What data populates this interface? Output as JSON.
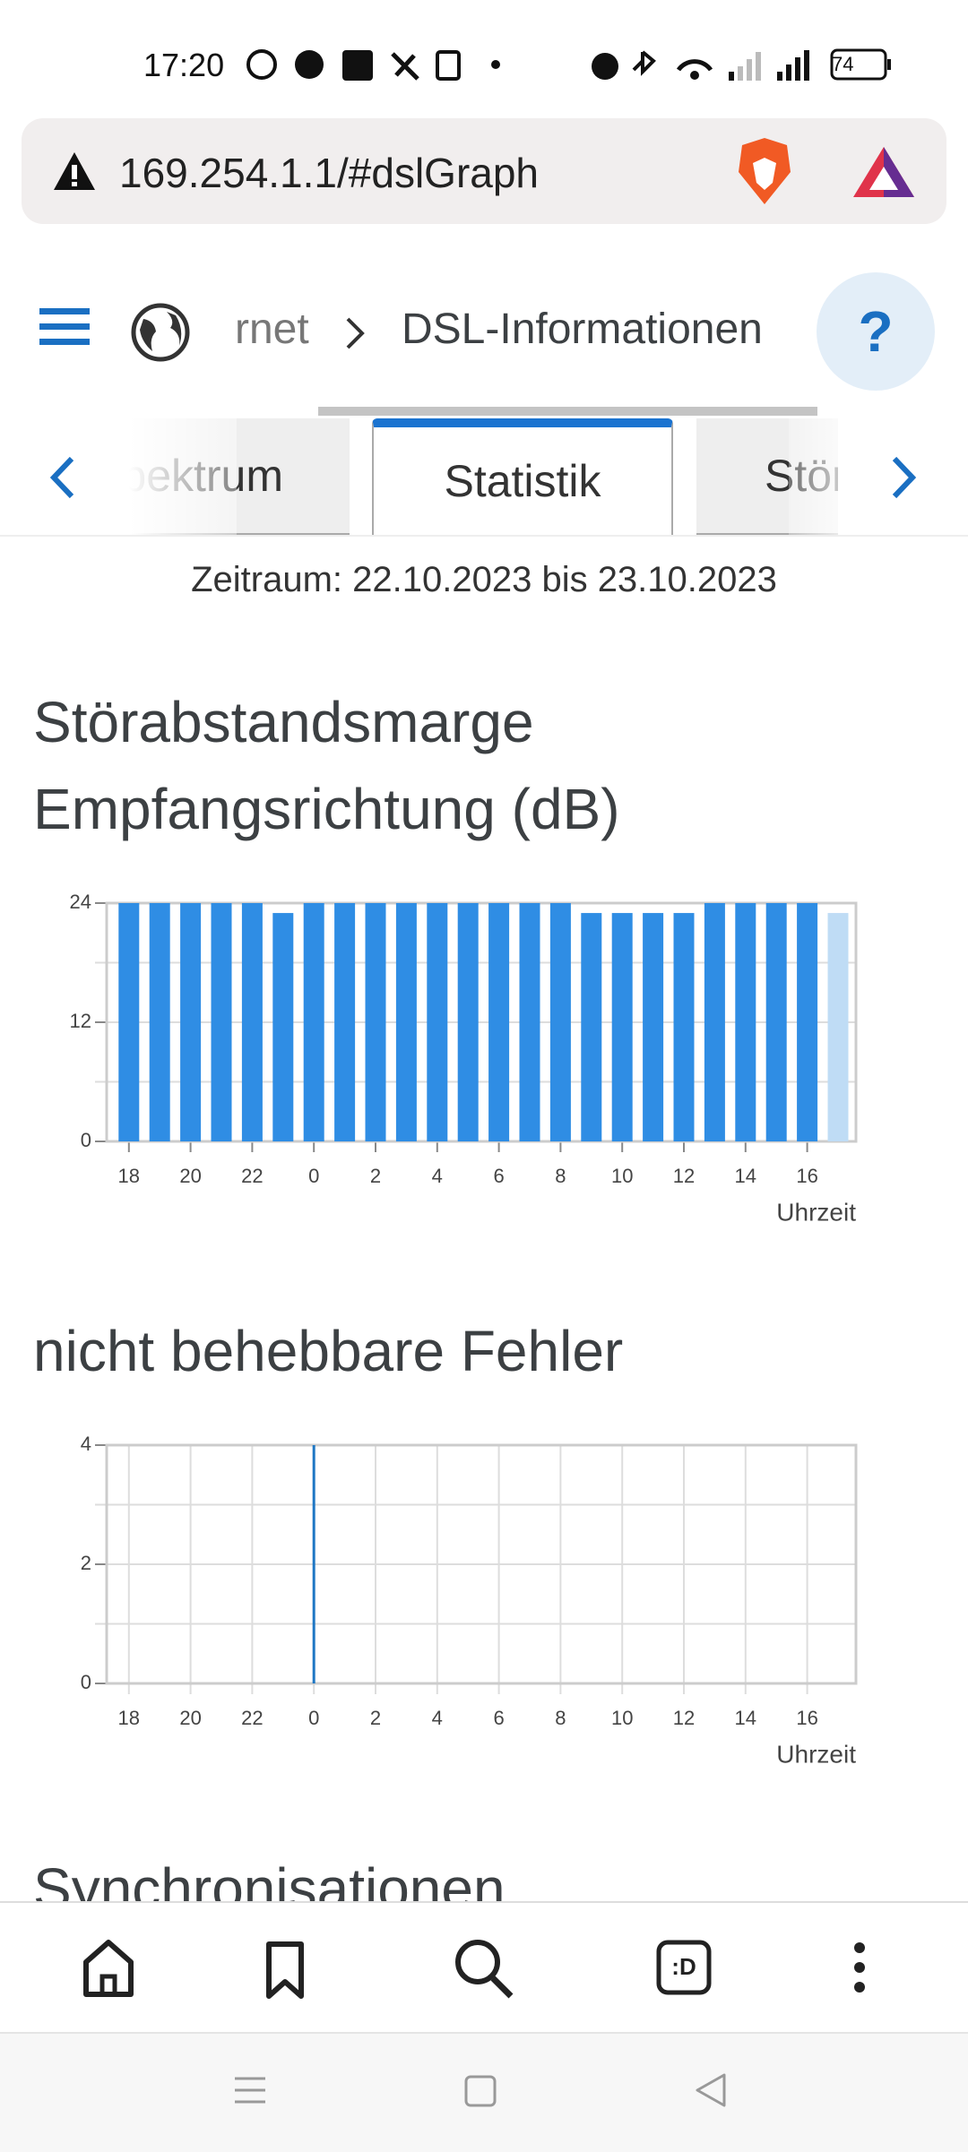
{
  "status_bar": {
    "time": "17:20",
    "battery": "74"
  },
  "address_bar": {
    "url": "169.254.1.1/#dslGraph"
  },
  "breadcrumb": {
    "previous": "rnet",
    "current": "DSL-Informationen",
    "help": "?"
  },
  "tabs": [
    "Spektrum",
    "Statistik",
    "Störsi"
  ],
  "period": "Zeitraum: 22.10.2023 bis 23.10.2023",
  "chart_data": [
    {
      "type": "bar",
      "title": "Störabstandsmarge Empfangsrichtung (dB)",
      "x_label": "Uhrzeit",
      "categories": [
        "18",
        null,
        "20",
        null,
        "22",
        null,
        "0",
        null,
        "2",
        null,
        "4",
        null,
        "6",
        null,
        "8",
        null,
        "10",
        null,
        "12",
        null,
        "14",
        null,
        "16",
        null
      ],
      "values": [
        24,
        24,
        24,
        24,
        24,
        23,
        24,
        24,
        24,
        24,
        24,
        24,
        24,
        24,
        24,
        23,
        23,
        23,
        23,
        24,
        24,
        24,
        24,
        23
      ],
      "colors": [
        "#2f8de4",
        "#2f8de4",
        "#2f8de4",
        "#2f8de4",
        "#2f8de4",
        "#2f8de4",
        "#2f8de4",
        "#2f8de4",
        "#2f8de4",
        "#2f8de4",
        "#2f8de4",
        "#2f8de4",
        "#2f8de4",
        "#2f8de4",
        "#2f8de4",
        "#2f8de4",
        "#2f8de4",
        "#2f8de4",
        "#2f8de4",
        "#2f8de4",
        "#2f8de4",
        "#2f8de4",
        "#2f8de4",
        "#bfdcf5"
      ],
      "ylim": [
        0,
        24
      ],
      "yticks": [
        0,
        12,
        24
      ],
      "ygrid": [
        0,
        6,
        12,
        18,
        24
      ],
      "xgrid": false
    },
    {
      "type": "bar",
      "title": "nicht behebbare Fehler",
      "x_label": "Uhrzeit",
      "categories": [
        "18",
        null,
        "20",
        null,
        "22",
        null,
        "0",
        null,
        "2",
        null,
        "4",
        null,
        "6",
        null,
        "8",
        null,
        "10",
        null,
        "12",
        null,
        "14",
        null,
        "16",
        null
      ],
      "values": [
        0,
        0,
        0,
        0,
        0,
        0,
        4,
        0,
        0,
        0,
        0,
        0,
        0,
        0,
        0,
        0,
        0,
        0,
        0,
        0,
        0,
        0,
        0,
        0
      ],
      "color": "#1f77c4",
      "ylim": [
        0,
        4
      ],
      "yticks": [
        0,
        2,
        4
      ],
      "ygrid": [
        0,
        1,
        2,
        3,
        4
      ],
      "xgrid": true
    }
  ],
  "next_section": "Synchronisationen"
}
